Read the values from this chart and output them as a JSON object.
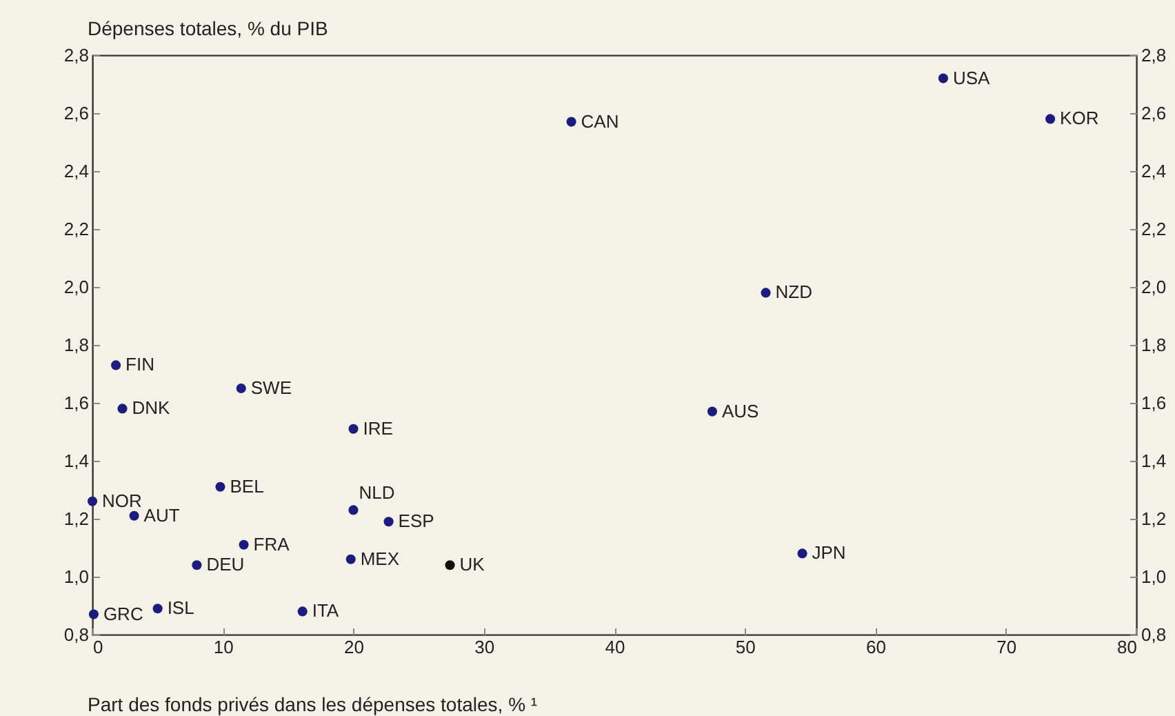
{
  "chart_data": {
    "type": "scatter",
    "marker": "circle",
    "ylabel": "Dépenses totales, % du PIB",
    "xlabel": "Part des fonds privés dans les dépenses totales, % ¹",
    "xlim": [
      0,
      80
    ],
    "xticks": [
      0,
      10,
      20,
      30,
      40,
      50,
      60,
      70,
      80
    ],
    "ylim": [
      0.8,
      2.8
    ],
    "yticks": [
      {
        "value": 0.8,
        "label": "0,8"
      },
      {
        "value": 1.0,
        "label": "1,0"
      },
      {
        "value": 1.2,
        "label": "1,2"
      },
      {
        "value": 1.4,
        "label": "1,4"
      },
      {
        "value": 1.6,
        "label": "1,6"
      },
      {
        "value": 1.8,
        "label": "1,8"
      },
      {
        "value": 2.0,
        "label": "2,0"
      },
      {
        "value": 2.2,
        "label": "2,2"
      },
      {
        "value": 2.4,
        "label": "2,4"
      },
      {
        "value": 2.6,
        "label": "2,6"
      },
      {
        "value": 2.8,
        "label": "2,8"
      }
    ],
    "y2lim": [
      0.8,
      2.8
    ],
    "y2ticks": [
      {
        "value": 0.8,
        "label": "0,8"
      },
      {
        "value": 1.0,
        "label": "1,0"
      },
      {
        "value": 1.2,
        "label": "1,2"
      },
      {
        "value": 1.4,
        "label": "1,4"
      },
      {
        "value": 1.6,
        "label": "1,6"
      },
      {
        "value": 1.8,
        "label": "1,8"
      },
      {
        "value": 2.0,
        "label": "2,0"
      },
      {
        "value": 2.2,
        "label": "2,2"
      },
      {
        "value": 2.4,
        "label": "2,4"
      },
      {
        "value": 2.6,
        "label": "2,6"
      },
      {
        "value": 2.8,
        "label": "2,8"
      }
    ],
    "series": [
      {
        "color": "#1c1c7c",
        "x": [
          65.2,
          73.4,
          36.7,
          51.6,
          47.5,
          54.4,
          1.8,
          2.3,
          11.4,
          20.0,
          0.0,
          9.8,
          3.2,
          20.0,
          22.7,
          11.6,
          8.0,
          19.8,
          0.1,
          5.0,
          16.1
        ],
        "values": [
          2.72,
          2.58,
          2.57,
          1.98,
          1.57,
          1.08,
          1.73,
          1.58,
          1.65,
          1.51,
          1.26,
          1.31,
          1.21,
          1.23,
          1.19,
          1.11,
          1.04,
          1.06,
          0.87,
          0.89,
          0.88
        ]
      },
      {
        "color": "#111111",
        "x": [
          27.4
        ],
        "values": [
          1.04
        ]
      }
    ],
    "annotations": [
      {
        "text": "USA",
        "x": 65.2,
        "y": 2.72
      },
      {
        "text": "KOR",
        "x": 73.4,
        "y": 2.58
      },
      {
        "text": "CAN",
        "x": 36.7,
        "y": 2.57
      },
      {
        "text": "NZD",
        "x": 51.6,
        "y": 1.98
      },
      {
        "text": "AUS",
        "x": 47.5,
        "y": 1.57
      },
      {
        "text": "JPN",
        "x": 54.4,
        "y": 1.08
      },
      {
        "text": "FIN",
        "x": 1.8,
        "y": 1.73
      },
      {
        "text": "DNK",
        "x": 2.3,
        "y": 1.58
      },
      {
        "text": "SWE",
        "x": 11.4,
        "y": 1.65
      },
      {
        "text": "IRE",
        "x": 20.0,
        "y": 1.51
      },
      {
        "text": "NOR",
        "x": 0.0,
        "y": 1.26
      },
      {
        "text": "BEL",
        "x": 9.8,
        "y": 1.31
      },
      {
        "text": "AUT",
        "x": 3.2,
        "y": 1.21
      },
      {
        "text": "NLD",
        "x": 20.0,
        "y": 1.23
      },
      {
        "text": "ESP",
        "x": 22.7,
        "y": 1.19
      },
      {
        "text": "FRA",
        "x": 11.6,
        "y": 1.11
      },
      {
        "text": "DEU",
        "x": 8.0,
        "y": 1.04
      },
      {
        "text": "MEX",
        "x": 19.8,
        "y": 1.06
      },
      {
        "text": "UK",
        "x": 27.4,
        "y": 1.04
      },
      {
        "text": "GRC",
        "x": 0.1,
        "y": 0.87
      },
      {
        "text": "ISL",
        "x": 5.0,
        "y": 0.89
      },
      {
        "text": "ITA",
        "x": 16.1,
        "y": 0.88
      }
    ]
  }
}
